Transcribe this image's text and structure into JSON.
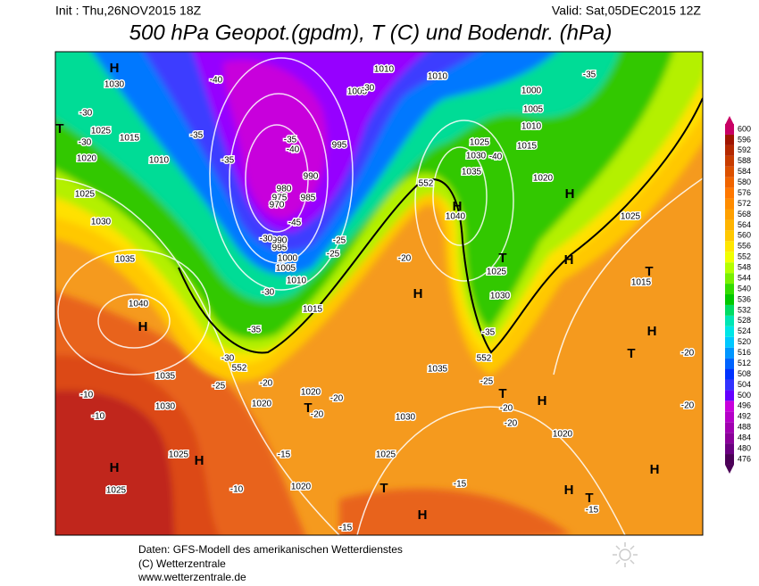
{
  "header": {
    "init": "Init : Thu,26NOV2015 18Z",
    "valid": "Valid: Sat,05DEC2015 12Z",
    "title": "500 hPa Geopot.(gpdm), T (C) und Bodendr. (hPa)"
  },
  "colorbar": {
    "ticks": [
      476,
      480,
      484,
      488,
      492,
      496,
      500,
      504,
      508,
      512,
      516,
      520,
      524,
      528,
      532,
      536,
      540,
      544,
      548,
      552,
      556,
      560,
      564,
      568,
      572,
      576,
      580,
      584,
      588,
      592,
      596,
      600
    ],
    "colors": [
      "#4b0057",
      "#6a0080",
      "#8a0099",
      "#a000b0",
      "#b400c8",
      "#c800dc",
      "#6400ff",
      "#3232ff",
      "#0032ff",
      "#0064ff",
      "#0096ff",
      "#00c8ff",
      "#00e6e6",
      "#00e6b4",
      "#00dc64",
      "#00c800",
      "#32dc00",
      "#78f000",
      "#b4ff00",
      "#f0ff00",
      "#ffe600",
      "#ffc800",
      "#ffb400",
      "#ffa000",
      "#ff8c00",
      "#ff7800",
      "#f06400",
      "#dc5000",
      "#c83c00",
      "#b42800",
      "#a01400",
      "#c80064"
    ]
  },
  "map": {
    "labels": [
      "H",
      "1030",
      "1025",
      "1015",
      "1020",
      "1010",
      "1025",
      "1030",
      "1035",
      "1040",
      "H",
      "1035",
      "1030",
      "1025",
      "H",
      "H",
      "1025",
      "-10",
      "-10",
      "-10",
      "-15",
      "1020",
      "-15",
      "1020",
      "T",
      "1020",
      "-20",
      "-20",
      "-20",
      "-25",
      "-30",
      "552",
      "-35",
      "-30",
      "1015",
      "1010",
      "1005",
      "1000",
      "995",
      "990",
      "980",
      "975",
      "970",
      "985",
      "990",
      "995",
      "-25",
      "-25",
      "-20",
      "H",
      "552",
      "1035",
      "1030",
      "1025",
      "T",
      "H",
      "-15",
      "-20",
      "T",
      "H",
      "-20",
      "-25",
      "552",
      "-35",
      "1030",
      "1025",
      "T",
      "1040",
      "H",
      "1035",
      "1030",
      "1025",
      "-40",
      "1015",
      "1020",
      "H",
      "1025",
      "H",
      "T",
      "1015",
      "H",
      "T",
      "-20",
      "-20",
      "1020",
      "H",
      "H",
      "T",
      "-15",
      "1010",
      "1005",
      "1000",
      "1010",
      "-35",
      "1010",
      "1005",
      "-30",
      "-40",
      "-35",
      "-35",
      "-30",
      "-30",
      "-30",
      "T",
      "-35",
      "-40",
      "-45"
    ]
  },
  "footer": {
    "lines": [
      "Daten: GFS-Modell des amerikanischen Wetterdienstes",
      "(C) Wetterzentrale",
      "www.wetterzentrale.de"
    ]
  }
}
